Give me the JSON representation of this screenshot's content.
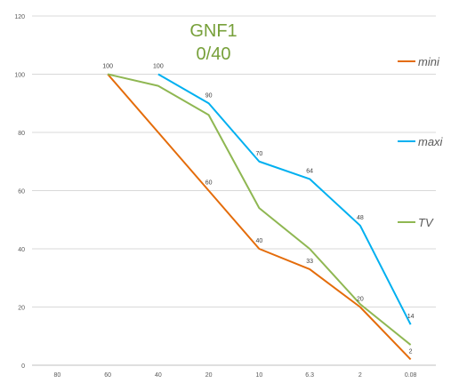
{
  "chart_data": {
    "type": "line",
    "title_line1": "GNF1",
    "title_line2": "0/40",
    "categories": [
      "80",
      "60",
      "40",
      "20",
      "10",
      "6.3",
      "2",
      "0.08"
    ],
    "ylim": [
      0,
      120
    ],
    "yticks": [
      0,
      20,
      40,
      60,
      80,
      100,
      120
    ],
    "grid": true,
    "legend_position": "right",
    "series": [
      {
        "name": "mini",
        "color": "#e46c0a",
        "values": [
          null,
          100,
          80,
          60,
          40,
          33,
          20,
          2
        ],
        "labels": [
          null,
          null,
          null,
          "60",
          "40",
          "33",
          "20",
          "2"
        ]
      },
      {
        "name": "maxi",
        "color": "#00b0f0",
        "values": [
          null,
          null,
          100,
          90,
          70,
          64,
          48,
          14
        ],
        "labels": [
          null,
          null,
          "100",
          "90",
          "70",
          "64",
          "48",
          "14"
        ]
      },
      {
        "name": "TV",
        "color": "#8fb752",
        "values": [
          null,
          100,
          96,
          86,
          54,
          40,
          21,
          7
        ],
        "labels": [
          null,
          "100",
          null,
          null,
          null,
          null,
          null,
          null
        ]
      }
    ]
  }
}
